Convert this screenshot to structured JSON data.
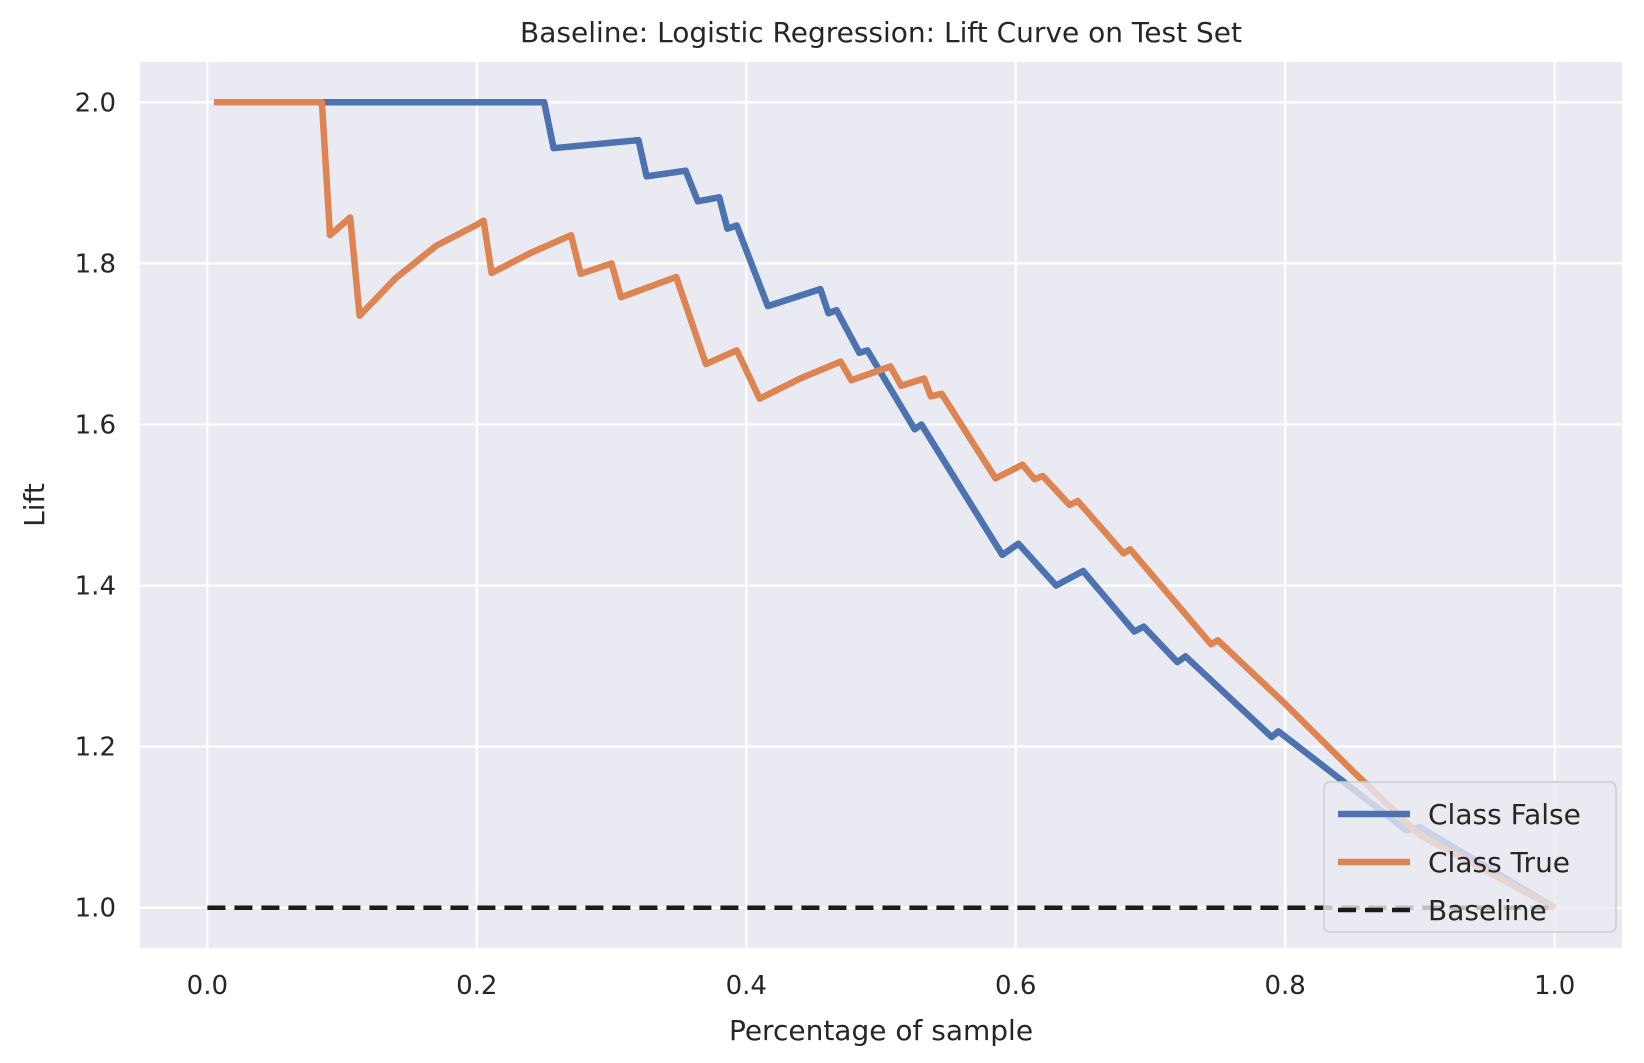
{
  "chart_data": {
    "type": "line",
    "title": "Baseline: Logistic Regression: Lift Curve on Test Set",
    "xlabel": "Percentage of sample",
    "ylabel": "Lift",
    "xlim": [
      -0.05,
      1.05
    ],
    "ylim": [
      0.95,
      2.05
    ],
    "xticks": [
      0.0,
      0.2,
      0.4,
      0.6,
      0.8,
      1.0
    ],
    "xtick_labels": [
      "0.0",
      "0.2",
      "0.4",
      "0.6",
      "0.8",
      "1.0"
    ],
    "yticks": [
      1.0,
      1.2,
      1.4,
      1.6,
      1.8,
      2.0
    ],
    "ytick_labels": [
      "1.0",
      "1.2",
      "1.4",
      "1.6",
      "1.8",
      "2.0"
    ],
    "grid": true,
    "background": "#eaeaf2",
    "legend_position": "lower-right",
    "series": [
      {
        "name": "Class False",
        "color": "#4c72b0",
        "dash": "solid",
        "x": [
          0.005,
          0.09,
          0.25,
          0.257,
          0.32,
          0.326,
          0.355,
          0.364,
          0.38,
          0.386,
          0.393,
          0.416,
          0.455,
          0.461,
          0.467,
          0.484,
          0.49,
          0.525,
          0.53,
          0.59,
          0.602,
          0.63,
          0.65,
          0.688,
          0.695,
          0.72,
          0.726,
          0.79,
          0.795,
          0.89,
          0.9,
          1.0
        ],
        "y": [
          2.0,
          2.0,
          2.0,
          1.943,
          1.953,
          1.908,
          1.915,
          1.877,
          1.882,
          1.843,
          1.847,
          1.747,
          1.768,
          1.738,
          1.742,
          1.689,
          1.692,
          1.594,
          1.6,
          1.438,
          1.452,
          1.4,
          1.418,
          1.343,
          1.349,
          1.305,
          1.312,
          1.212,
          1.219,
          1.096,
          1.1,
          1.0
        ]
      },
      {
        "name": "Class True",
        "color": "#dd8452",
        "dash": "solid",
        "x": [
          0.005,
          0.085,
          0.091,
          0.106,
          0.113,
          0.14,
          0.17,
          0.2,
          0.205,
          0.211,
          0.24,
          0.27,
          0.277,
          0.3,
          0.307,
          0.348,
          0.37,
          0.393,
          0.41,
          0.44,
          0.47,
          0.478,
          0.507,
          0.515,
          0.532,
          0.537,
          0.545,
          0.585,
          0.605,
          0.614,
          0.62,
          0.64,
          0.646,
          0.68,
          0.685,
          0.745,
          0.75,
          0.8,
          0.85,
          0.9,
          0.95,
          1.0
        ],
        "y": [
          2.0,
          2.0,
          1.835,
          1.857,
          1.735,
          1.782,
          1.822,
          1.848,
          1.853,
          1.788,
          1.813,
          1.835,
          1.787,
          1.8,
          1.758,
          1.783,
          1.675,
          1.692,
          1.632,
          1.657,
          1.678,
          1.655,
          1.672,
          1.648,
          1.657,
          1.635,
          1.638,
          1.533,
          1.55,
          1.532,
          1.536,
          1.5,
          1.505,
          1.44,
          1.445,
          1.327,
          1.332,
          1.253,
          1.17,
          1.09,
          1.045,
          1.0
        ]
      },
      {
        "name": "Baseline",
        "color": "#1a1a1a",
        "dash": "dashed",
        "x": [
          0.0,
          1.0
        ],
        "y": [
          1.0,
          1.0
        ]
      }
    ]
  }
}
